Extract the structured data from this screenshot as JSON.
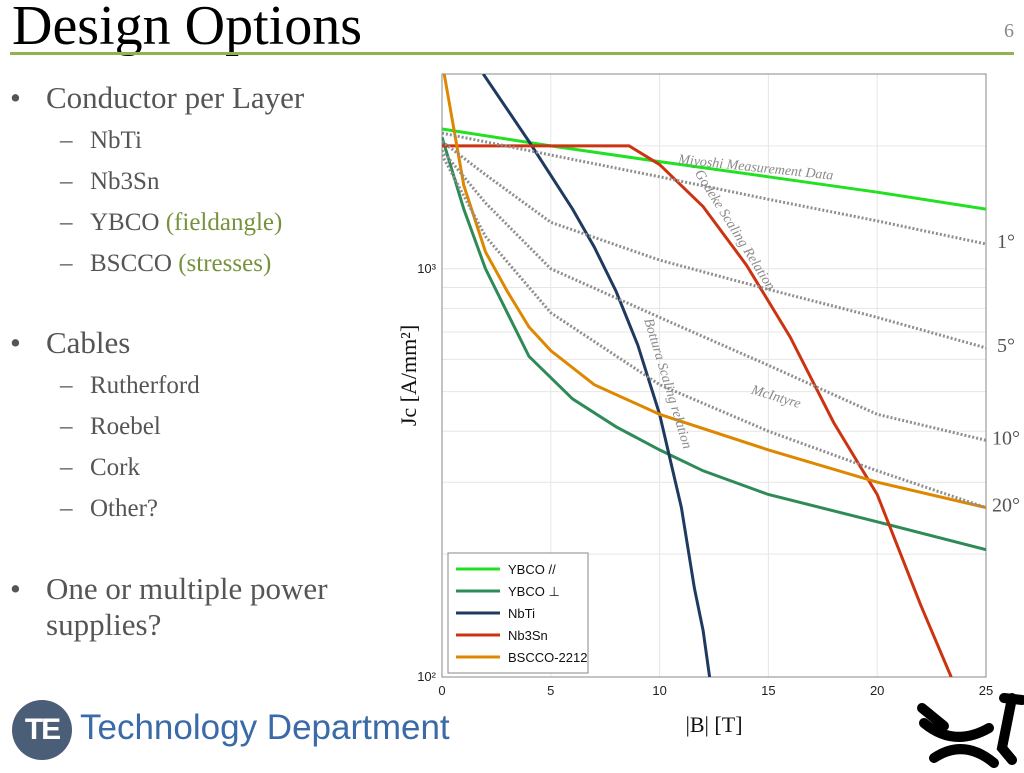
{
  "slide": {
    "title": "Design Options",
    "number": "6"
  },
  "bullets": [
    {
      "label": "Conductor per Layer",
      "items": [
        {
          "text": "NbTi",
          "note": ""
        },
        {
          "text": "Nb3Sn",
          "note": ""
        },
        {
          "text": "YBCO",
          "note": "(fieldangle)"
        },
        {
          "text": "BSCCO",
          "note": "(stresses)"
        }
      ]
    },
    {
      "label": "Cables",
      "items": [
        {
          "text": "Rutherford",
          "note": ""
        },
        {
          "text": "Roebel",
          "note": ""
        },
        {
          "text": "Cork",
          "note": ""
        },
        {
          "text": "Other?",
          "note": ""
        }
      ]
    },
    {
      "label": "One or multiple power supplies?",
      "items": []
    }
  ],
  "footer": {
    "logo_text": "TE",
    "department": "Technology Department"
  },
  "colors": {
    "accent_rule": "#8fb34f",
    "note_green": "#76923c",
    "department_blue": "#3b6aa8"
  },
  "chart_data": {
    "type": "line",
    "title": "",
    "xlabel": "|B| [T]",
    "ylabel": "Jc [A/mm²]",
    "xlim": [
      0,
      25
    ],
    "ylim": [
      100,
      3000
    ],
    "yscale": "log",
    "xticks": [
      "0",
      "5",
      "10",
      "15",
      "20",
      "25"
    ],
    "yticks": [
      {
        "label": "10³",
        "value": 1000
      },
      {
        "label": "10²",
        "value": 100
      }
    ],
    "grid": true,
    "legend_position": "bottom-left",
    "series": [
      {
        "name": "YBCO //",
        "color": "#22e022",
        "legend": true,
        "x": [
          0,
          5,
          10,
          15,
          20,
          25
        ],
        "y": [
          2200,
          2000,
          1830,
          1680,
          1540,
          1400
        ]
      },
      {
        "name": "YBCO ⊥",
        "color": "#2e8b57",
        "legend": true,
        "x": [
          0,
          1,
          2,
          3,
          4,
          6,
          8,
          10,
          12,
          15,
          20,
          25
        ],
        "y": [
          2100,
          1400,
          1000,
          780,
          610,
          480,
          410,
          360,
          320,
          280,
          240,
          205
        ]
      },
      {
        "name": "NbTi",
        "color": "#1f3a5f",
        "legend": true,
        "x": [
          1.9,
          4,
          6,
          7,
          8,
          9,
          10,
          11,
          11.6,
          12,
          12.3
        ],
        "y": [
          3000,
          2050,
          1400,
          1130,
          880,
          650,
          440,
          260,
          165,
          130,
          100
        ]
      },
      {
        "name": "Nb3Sn",
        "color": "#cc3311",
        "legend": true,
        "x": [
          0,
          4,
          8.6,
          10,
          12,
          14,
          16,
          18,
          20,
          22,
          23.4
        ],
        "y": [
          2000,
          2000,
          2000,
          1800,
          1420,
          1020,
          680,
          420,
          280,
          150,
          100
        ]
      },
      {
        "name": "BSCCO-2212",
        "color": "#dd8800",
        "legend": true,
        "x": [
          0.1,
          1,
          2,
          3,
          4,
          5,
          7,
          10,
          15,
          20,
          25
        ],
        "y": [
          3000,
          1600,
          1100,
          880,
          720,
          630,
          520,
          440,
          360,
          300,
          260
        ]
      },
      {
        "name": "1°",
        "color": "#9a9a9a",
        "legend": false,
        "dashed": true,
        "x": [
          0,
          5,
          10,
          15,
          20,
          25
        ],
        "y": [
          2150,
          1900,
          1680,
          1480,
          1310,
          1150
        ]
      },
      {
        "name": "5°",
        "color": "#9a9a9a",
        "legend": false,
        "dashed": true,
        "x": [
          0,
          2,
          5,
          10,
          15,
          20,
          25
        ],
        "y": [
          2050,
          1700,
          1300,
          1050,
          890,
          760,
          640
        ]
      },
      {
        "name": "10°",
        "color": "#9a9a9a",
        "legend": false,
        "dashed": true,
        "x": [
          0,
          2,
          5,
          10,
          15,
          20,
          25
        ],
        "y": [
          1950,
          1450,
          1000,
          760,
          580,
          440,
          380
        ]
      },
      {
        "name": "20°",
        "color": "#9a9a9a",
        "legend": false,
        "dashed": true,
        "x": [
          0,
          2,
          5,
          10,
          15,
          20,
          25
        ],
        "y": [
          1900,
          1200,
          780,
          520,
          400,
          320,
          260
        ]
      }
    ],
    "annotations": [
      {
        "text": "Miyoshi Measurement Data",
        "x": 14.4,
        "y": 1730,
        "rotate": 6
      },
      {
        "text": "Godeke Scaling Relation",
        "x": 13.3,
        "y": 1230,
        "rotate": 58
      },
      {
        "text": "Bottura Scaling relation",
        "x": 10.2,
        "y": 520,
        "rotate": 73
      },
      {
        "text": "McIntyre",
        "x": 15.3,
        "y": 475,
        "rotate": 17
      }
    ],
    "angle_labels": [
      {
        "text": "1°",
        "y": 1150
      },
      {
        "text": "5°",
        "y": 640
      },
      {
        "text": "10°",
        "y": 380
      },
      {
        "text": "20°",
        "y": 260
      }
    ]
  }
}
